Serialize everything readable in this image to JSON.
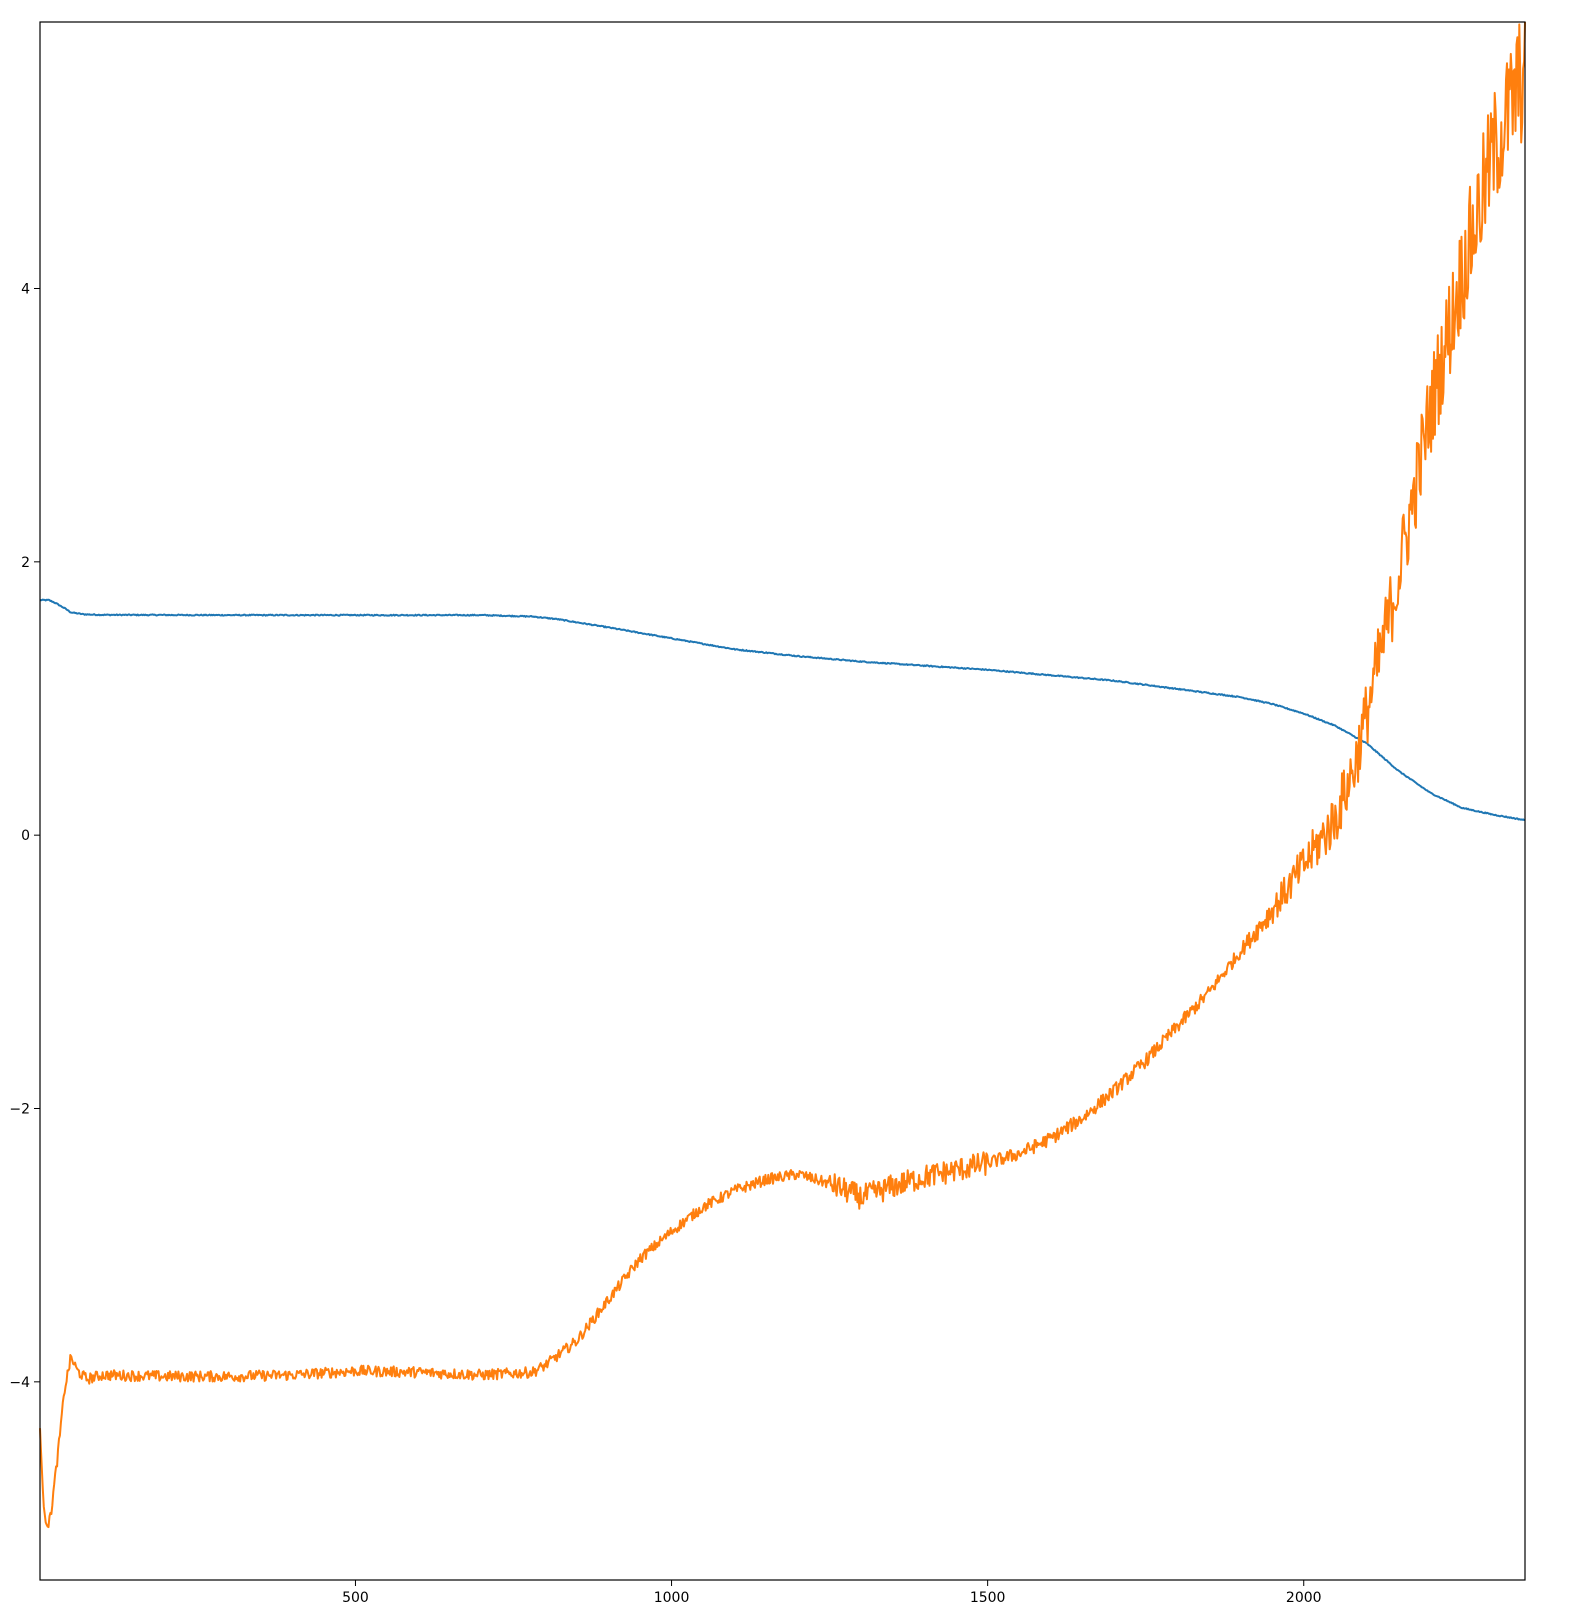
{
  "chart_data": {
    "type": "line",
    "title": "",
    "xlabel": "",
    "ylabel": "",
    "xlim": [
      1,
      2350
    ],
    "ylim": [
      -5.45,
      5.95
    ],
    "grid": false,
    "legend": "none",
    "x_ticks": [
      {
        "value": 500,
        "label": "500"
      },
      {
        "value": 1000,
        "label": "1000"
      },
      {
        "value": 1500,
        "label": "1500"
      },
      {
        "value": 2000,
        "label": "2000"
      }
    ],
    "y_ticks": [
      {
        "value": -4,
        "label": "−4"
      },
      {
        "value": -2,
        "label": "−2"
      },
      {
        "value": 0,
        "label": "0"
      },
      {
        "value": 2,
        "label": "2"
      },
      {
        "value": 4,
        "label": "4"
      }
    ],
    "series": [
      {
        "color": "#1f77b4",
        "noise": 0.004,
        "x": [
          1,
          15,
          25,
          40,
          50,
          70,
          100,
          300,
          500,
          700,
          780,
          820,
          900,
          1000,
          1100,
          1200,
          1300,
          1400,
          1500,
          1600,
          1700,
          1800,
          1900,
          1950,
          2000,
          2050,
          2100,
          2150,
          2200,
          2250,
          2300,
          2350
        ],
        "y": [
          1.72,
          1.72,
          1.7,
          1.66,
          1.63,
          1.616,
          1.612,
          1.61,
          1.61,
          1.61,
          1.6,
          1.58,
          1.52,
          1.44,
          1.36,
          1.31,
          1.27,
          1.24,
          1.21,
          1.17,
          1.13,
          1.07,
          1.01,
          0.96,
          0.89,
          0.8,
          0.67,
          0.47,
          0.31,
          0.2,
          0.15,
          0.11
        ]
      },
      {
        "color": "#ff7f0e",
        "noise": 0.04,
        "x": [
          1,
          5,
          10,
          15,
          20,
          30,
          40,
          50,
          60,
          75,
          100,
          200,
          300,
          400,
          500,
          600,
          700,
          780,
          800,
          850,
          900,
          950,
          1000,
          1050,
          1100,
          1150,
          1200,
          1250,
          1300,
          1350,
          1400,
          1450,
          1500,
          1550,
          1600,
          1650,
          1700,
          1750,
          1800,
          1850,
          1900,
          1950,
          2000,
          2050,
          2080,
          2100,
          2150,
          2200,
          2250,
          2300,
          2350
        ],
        "y": [
          -4.3,
          -4.8,
          -5.0,
          -5.05,
          -4.9,
          -4.5,
          -4.05,
          -3.82,
          -3.92,
          -3.98,
          -3.95,
          -3.96,
          -3.96,
          -3.95,
          -3.92,
          -3.93,
          -3.95,
          -3.93,
          -3.88,
          -3.7,
          -3.4,
          -3.1,
          -2.9,
          -2.72,
          -2.6,
          -2.52,
          -2.48,
          -2.55,
          -2.65,
          -2.57,
          -2.5,
          -2.45,
          -2.4,
          -2.33,
          -2.22,
          -2.07,
          -1.87,
          -1.65,
          -1.4,
          -1.15,
          -0.85,
          -0.55,
          -0.22,
          0.12,
          0.5,
          0.9,
          1.9,
          3.1,
          4.1,
          5.0,
          5.6
        ]
      }
    ]
  }
}
